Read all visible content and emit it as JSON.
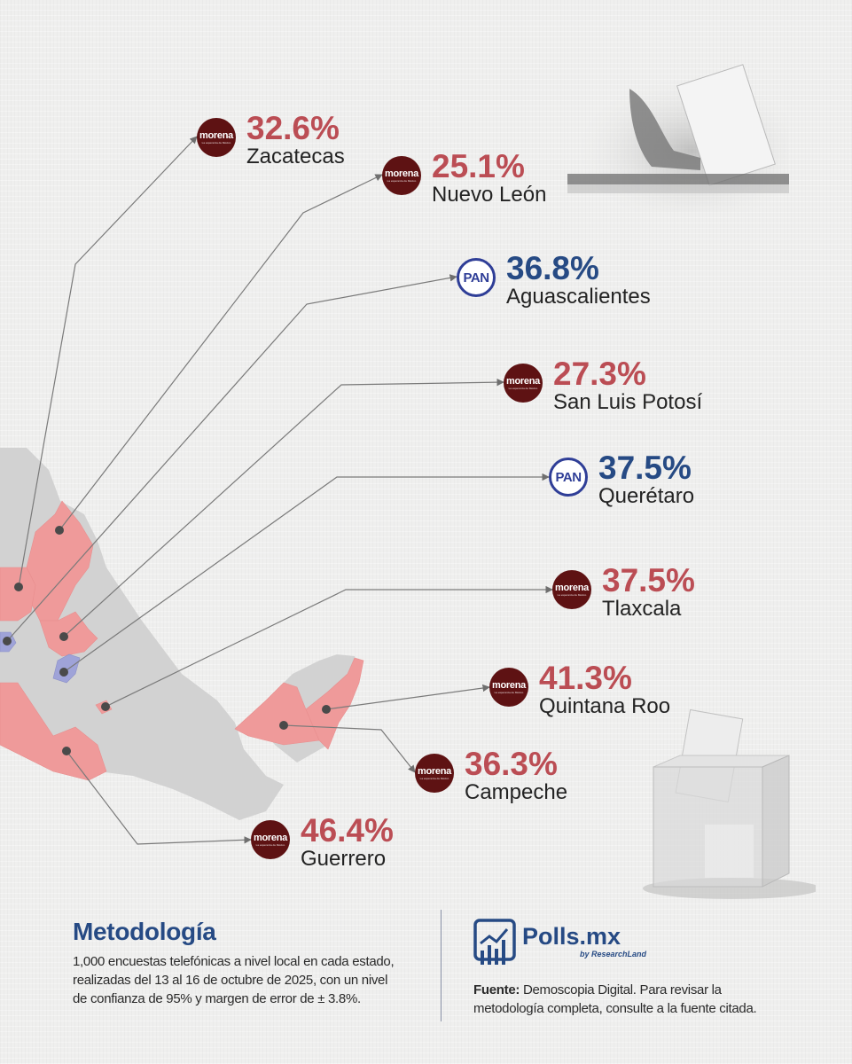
{
  "colors": {
    "morena": "#bb4d54",
    "pan": "#264a84",
    "morena_logo": "#5e1213",
    "pan_logo_border": "#2f3e97",
    "map_base": "#d2d2d2",
    "map_highlight_morena": "#ef9a9a",
    "map_highlight_pan": "#9fa3d8"
  },
  "results": [
    {
      "party": "morena",
      "party_logo": "morena",
      "logo_subtext": "La esperanza de México",
      "percent": "32.6%",
      "state": "Zacatecas"
    },
    {
      "party": "morena",
      "party_logo": "morena",
      "logo_subtext": "La esperanza de México",
      "percent": "25.1%",
      "state": "Nuevo León"
    },
    {
      "party": "pan",
      "party_logo": "PAN",
      "percent": "36.8%",
      "state": "Aguascalientes"
    },
    {
      "party": "morena",
      "party_logo": "morena",
      "logo_subtext": "La esperanza de México",
      "percent": "27.3%",
      "state": "San Luis Potosí"
    },
    {
      "party": "pan",
      "party_logo": "PAN",
      "percent": "37.5%",
      "state": "Querétaro"
    },
    {
      "party": "morena",
      "party_logo": "morena",
      "logo_subtext": "La esperanza de México",
      "percent": "37.5%",
      "state": "Tlaxcala"
    },
    {
      "party": "morena",
      "party_logo": "morena",
      "logo_subtext": "La esperanza de México",
      "percent": "41.3%",
      "state": "Quintana Roo"
    },
    {
      "party": "morena",
      "party_logo": "morena",
      "logo_subtext": "La esperanza de México",
      "percent": "36.3%",
      "state": "Campeche"
    },
    {
      "party": "morena",
      "party_logo": "morena",
      "logo_subtext": "La esperanza de México",
      "percent": "46.4%",
      "state": "Guerrero"
    }
  ],
  "methodology": {
    "title": "Metodología",
    "lines": [
      "1,000 encuestas telefónicas a nivel local en cada estado,",
      "realizadas del 13 al 16 de octubre de 2025, con un nivel",
      "de confianza de 95% y margen de error de ± 3.8%."
    ]
  },
  "brand": {
    "name": "Polls.mx",
    "byline": "by ResearchLand",
    "icon": "chart-frame-icon"
  },
  "source": {
    "label": "Fuente:",
    "lines": [
      "Demoscopia Digital. Para revisar la",
      "metodología completa, consulte a la fuente citada."
    ]
  },
  "decorations": {
    "top_image": "ballot-hand-icon",
    "bottom_image": "ballot-box-icon"
  }
}
